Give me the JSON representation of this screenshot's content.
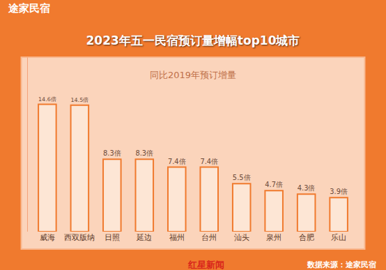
{
  "chart_data": {
    "type": "bar",
    "title": "2023年五一民宿预订量增幅top10城市",
    "subtitle": "同比2019年预订增量",
    "annotations": [
      "途家民宿",
      "数据来源：途家民宿",
      "红星新闻"
    ],
    "categories": [
      "威海",
      "西双版纳",
      "日照",
      "延边",
      "福州",
      "台州",
      "汕头",
      "泉州",
      "合肥",
      "乐山"
    ],
    "values": [
      14.6,
      14.5,
      8.3,
      8.3,
      7.4,
      7.4,
      5.5,
      4.7,
      4.3,
      3.9
    ],
    "value_labels": [
      "14.6倍",
      "14.5倍",
      "8.3倍",
      "8.3倍",
      "7.4倍",
      "7.4倍",
      "5.5倍",
      "4.7倍",
      "4.3倍",
      "3.9倍"
    ],
    "color": "#fde6d5",
    "ylim": [
      0,
      20
    ],
    "grid": false,
    "data_labels": true,
    "tick_labels": "x"
  }
}
